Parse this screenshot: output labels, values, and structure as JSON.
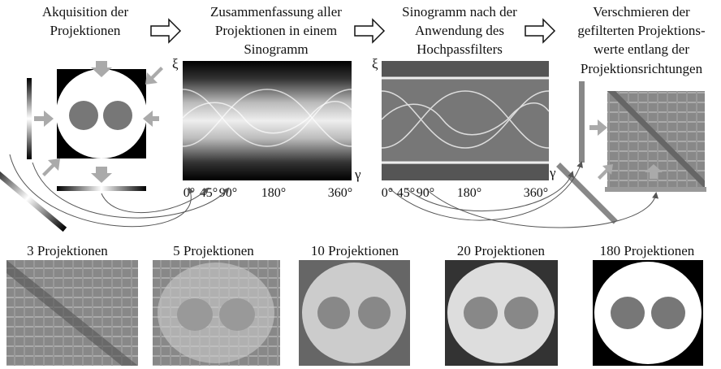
{
  "steps": [
    {
      "lines": [
        "Akquisition der",
        "Projektionen"
      ]
    },
    {
      "lines": [
        "Zusammenfassung aller",
        "Projektionen in einem",
        "Sinogramm"
      ]
    },
    {
      "lines": [
        "Sinogramm nach der",
        "Anwendung des",
        "Hochpassfilters"
      ]
    },
    {
      "lines": [
        "Verschmieren der",
        "gefilterten Projektions-",
        "werte entlang der",
        "Projektionsrichtungen"
      ]
    }
  ],
  "sinograms": [
    {
      "y_axis": "ξ",
      "x_axis": "γ",
      "ticks": [
        "0°",
        "45°",
        "90°",
        "180°",
        "360°"
      ]
    },
    {
      "y_axis": "ξ",
      "x_axis": "γ",
      "ticks": [
        "0°",
        "45°",
        "90°",
        "180°",
        "360°"
      ]
    }
  ],
  "reconstructions": [
    "3 Projektionen",
    "5 Projektionen",
    "10 Projektionen",
    "20 Projektionen",
    "180 Projektionen"
  ]
}
